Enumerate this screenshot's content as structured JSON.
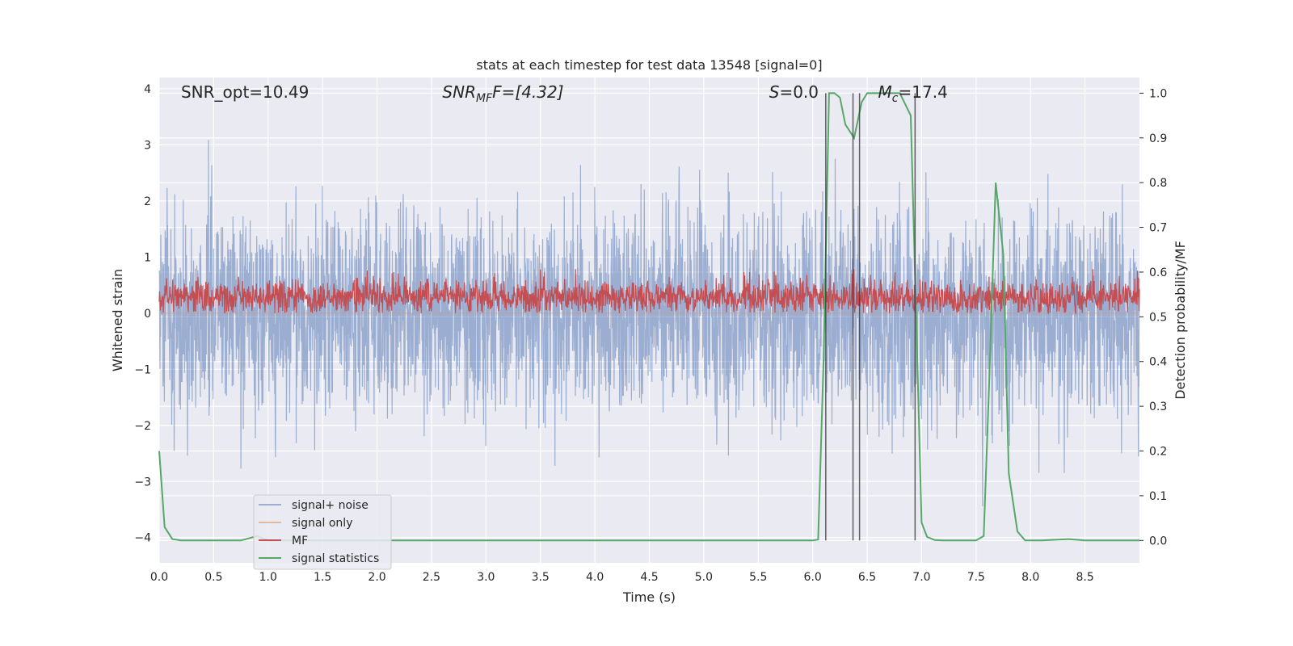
{
  "chart_data": {
    "type": "line",
    "title": "stats at each timestep for test data 13548 [signal=0]",
    "xlabel": "Time (s)",
    "ylabel_left": "Whitened strain",
    "ylabel_right": "Detection probability/MF",
    "xlim": [
      0,
      9.0
    ],
    "ylim_left": [
      -4.45,
      4.2
    ],
    "ylim_right": [
      -0.05,
      1.035
    ],
    "x_ticks": [
      "0.0",
      "0.5",
      "1.0",
      "1.5",
      "2.0",
      "2.5",
      "3.0",
      "3.5",
      "4.0",
      "4.5",
      "5.0",
      "5.5",
      "6.0",
      "6.5",
      "7.0",
      "7.5",
      "8.0",
      "8.5"
    ],
    "y_ticks_left": [
      "4",
      "3",
      "2",
      "1",
      "0",
      "−1",
      "−2",
      "−3",
      "−4"
    ],
    "y_ticks_right": [
      "1.0",
      "0.9",
      "0.8",
      "0.7",
      "0.6",
      "0.5",
      "0.4",
      "0.3",
      "0.2",
      "0.1",
      "0.0"
    ],
    "grid": true,
    "background_color": "#eaeaf2",
    "annotations": {
      "snr_opt": "SNR_opt=10.49",
      "snr_mf_main": "SNR",
      "snr_mf_sub": "MF",
      "snr_mf_tail": "F=[4.32]",
      "s_main": "S",
      "s_tail": "=0.0",
      "mc_main": "M",
      "mc_sub": "c",
      "mc_tail": "=17.4"
    },
    "vertical_lines_x": [
      6.12,
      6.37,
      6.43,
      6.94
    ],
    "series": [
      {
        "name": "signal+ noise",
        "color": "#4c72b0",
        "opacity": 0.5,
        "axis": "left",
        "noise_sigma": 0.9,
        "peak_max": 3.33,
        "peak_min": -4.0,
        "x_range": [
          0,
          9.0
        ]
      },
      {
        "name": "signal only",
        "color": "#dd8452",
        "opacity": 0.5,
        "axis": "left",
        "values": [
          0
        ]
      },
      {
        "name": "MF",
        "color": "#c44e52",
        "axis": "left",
        "baseline": 0.28,
        "range": [
          0.0,
          0.98
        ]
      },
      {
        "name": "signal statistics",
        "color": "#55a868",
        "axis": "right",
        "x": [
          0.0,
          0.05,
          0.12,
          0.2,
          0.4,
          0.75,
          0.9,
          1.0,
          2.3,
          2.5,
          6.0,
          6.05,
          6.1,
          6.15,
          6.2,
          6.25,
          6.3,
          6.38,
          6.45,
          6.5,
          6.55,
          6.65,
          6.8,
          6.9,
          6.95,
          7.0,
          7.05,
          7.12,
          7.2,
          7.5,
          7.57,
          7.62,
          7.68,
          7.75,
          7.8,
          7.88,
          7.95,
          8.1,
          8.35,
          8.5,
          9.0
        ],
        "y": [
          0.2,
          0.03,
          0.003,
          0.0,
          0.0,
          0.0,
          0.01,
          0.0,
          0.0,
          0.0,
          0.0,
          0.002,
          0.4,
          1.0,
          1.0,
          0.99,
          0.93,
          0.9,
          0.98,
          1.0,
          1.0,
          1.0,
          1.0,
          0.95,
          0.5,
          0.04,
          0.008,
          0.001,
          0.0,
          0.0,
          0.01,
          0.35,
          0.8,
          0.64,
          0.15,
          0.02,
          0.0,
          0.0,
          0.003,
          0.0,
          0.0
        ]
      }
    ],
    "legend": {
      "placement": "lower-left",
      "entries": [
        "signal+ noise",
        "signal only",
        "MF",
        "signal statistics"
      ]
    }
  }
}
